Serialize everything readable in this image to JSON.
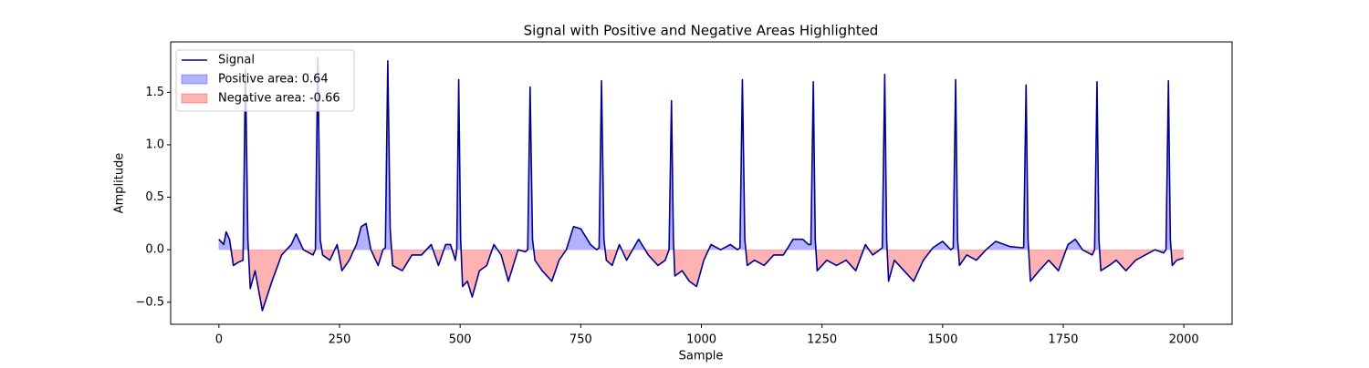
{
  "chart_data": {
    "type": "line",
    "title": "Signal with Positive and Negative Areas Highlighted",
    "x_label": "Sample",
    "y_label": "Amplitude",
    "x": [
      0,
      10,
      15,
      22,
      30,
      40,
      50,
      55,
      60,
      65,
      75,
      90,
      110,
      130,
      150,
      160,
      175,
      195,
      200,
      205,
      210,
      215,
      230,
      245,
      255,
      270,
      285,
      295,
      305,
      315,
      330,
      340,
      345,
      350,
      355,
      360,
      380,
      400,
      420,
      440,
      455,
      470,
      480,
      490,
      493,
      497,
      501,
      505,
      515,
      525,
      540,
      555,
      570,
      585,
      600,
      620,
      635,
      640,
      645,
      650,
      655,
      670,
      690,
      705,
      720,
      735,
      750,
      770,
      783,
      788,
      793,
      798,
      803,
      815,
      830,
      845,
      870,
      890,
      910,
      925,
      933,
      938,
      942,
      945,
      960,
      975,
      990,
      1005,
      1020,
      1040,
      1060,
      1075,
      1080,
      1085,
      1090,
      1095,
      1110,
      1130,
      1150,
      1170,
      1190,
      1210,
      1222,
      1227,
      1232,
      1236,
      1240,
      1260,
      1280,
      1300,
      1320,
      1340,
      1355,
      1370,
      1375,
      1380,
      1384,
      1388,
      1400,
      1420,
      1440,
      1460,
      1480,
      1500,
      1517,
      1522,
      1527,
      1531,
      1535,
      1550,
      1570,
      1590,
      1610,
      1640,
      1663,
      1668,
      1673,
      1677,
      1682,
      1700,
      1720,
      1740,
      1760,
      1775,
      1790,
      1810,
      1815,
      1820,
      1824,
      1828,
      1845,
      1860,
      1880,
      1900,
      1920,
      1940,
      1958,
      1963,
      1968,
      1972,
      1976,
      1985,
      1999
    ],
    "series": [
      {
        "name": "Signal",
        "color": "#00008b",
        "values": [
          0.1,
          0.05,
          0.17,
          0.1,
          -0.15,
          -0.12,
          -0.1,
          1.72,
          0.1,
          -0.37,
          -0.2,
          -0.58,
          -0.3,
          -0.05,
          0.05,
          0.15,
          0,
          -0.05,
          0,
          1.83,
          0.1,
          -0.05,
          -0.1,
          0.05,
          -0.2,
          -0.1,
          0.05,
          0.22,
          0.25,
          0,
          -0.15,
          0,
          0.02,
          1.8,
          0.2,
          -0.15,
          -0.2,
          -0.05,
          -0.05,
          0.05,
          -0.15,
          0.05,
          0.05,
          -0.1,
          0,
          1.62,
          0.1,
          -0.35,
          -0.3,
          -0.45,
          -0.2,
          -0.15,
          0.05,
          -0.05,
          -0.3,
          0,
          -0.02,
          0,
          1.55,
          0.1,
          -0.1,
          -0.2,
          -0.3,
          -0.1,
          0,
          0.22,
          0.2,
          0.05,
          0,
          0.02,
          1.61,
          0.1,
          -0.1,
          -0.15,
          0.05,
          -0.1,
          0.1,
          -0.05,
          -0.15,
          -0.1,
          0,
          1.42,
          0.1,
          -0.25,
          -0.2,
          -0.3,
          -0.35,
          -0.1,
          0.05,
          0,
          0.05,
          0,
          0.02,
          1.62,
          0.1,
          -0.15,
          -0.1,
          -0.15,
          -0.05,
          -0.05,
          0.1,
          0.1,
          0.05,
          0.05,
          1.6,
          0.1,
          -0.2,
          -0.1,
          -0.15,
          -0.1,
          -0.2,
          0.05,
          -0.05,
          0,
          0.02,
          1.67,
          0.1,
          -0.3,
          -0.1,
          -0.2,
          -0.3,
          -0.1,
          0.02,
          0.08,
          0,
          0.02,
          1.62,
          0.1,
          -0.15,
          -0.05,
          -0.1,
          0,
          0.08,
          0.03,
          0.02,
          0.02,
          1.57,
          0.1,
          -0.3,
          -0.2,
          -0.1,
          -0.2,
          0.05,
          0.1,
          0,
          -0.05,
          0,
          1.6,
          0.1,
          -0.2,
          -0.15,
          -0.1,
          -0.2,
          -0.1,
          -0.05,
          0,
          -0.03,
          0,
          1.61,
          0.1,
          -0.15,
          -0.1,
          -0.08
        ]
      }
    ],
    "fills": [
      {
        "name": "Positive area: 0.64",
        "color": "#0000ff",
        "opacity": 0.3,
        "side": "positive"
      },
      {
        "name": "Negative area: -0.66",
        "color": "#ff0000",
        "opacity": 0.3,
        "side": "negative"
      }
    ],
    "xlim": [
      -100,
      2100
    ],
    "ylim": [
      -0.71,
      1.98
    ],
    "xticks": [
      0,
      250,
      500,
      750,
      1000,
      1250,
      1500,
      1750,
      2000
    ],
    "yticks": [
      {
        "value": -0.5,
        "label": "−0.5"
      },
      {
        "value": 0,
        "label": "0.0"
      },
      {
        "value": 0.5,
        "label": "0.5"
      },
      {
        "value": 1,
        "label": "1.0"
      },
      {
        "value": 1.5,
        "label": "1.5"
      }
    ],
    "grid": false,
    "legend": "upper left"
  }
}
